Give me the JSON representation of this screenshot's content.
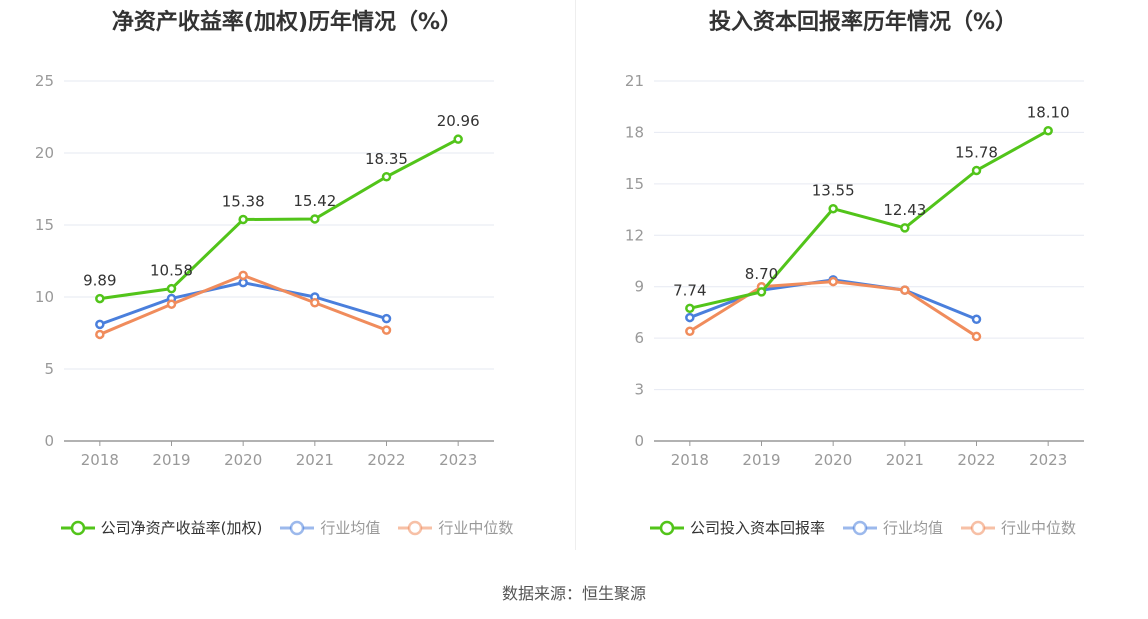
{
  "footer": {
    "source": "数据来源：恒生聚源"
  },
  "chart_data": [
    {
      "type": "line",
      "title": "净资产收益率(加权)历年情况（%）",
      "categories": [
        "2018",
        "2019",
        "2020",
        "2021",
        "2022",
        "2023"
      ],
      "ylim": [
        0,
        25
      ],
      "yticks": [
        0,
        5,
        10,
        15,
        20,
        25
      ],
      "grid": true,
      "legend_position": "bottom",
      "series": [
        {
          "name": "公司净资产收益率(加权)",
          "color": "#52c41a",
          "values": [
            9.89,
            10.58,
            15.38,
            15.42,
            18.35,
            20.96
          ],
          "labels": [
            "9.89",
            "10.58",
            "15.38",
            "15.42",
            "18.35",
            "20.96"
          ]
        },
        {
          "name": "行业均值",
          "color": "#4a7fdc",
          "values": [
            8.1,
            9.9,
            11.0,
            10.0,
            8.5,
            null
          ]
        },
        {
          "name": "行业中位数",
          "color": "#f08c5c",
          "values": [
            7.4,
            9.5,
            11.5,
            9.6,
            7.7,
            null
          ]
        }
      ]
    },
    {
      "type": "line",
      "title": "投入资本回报率历年情况（%）",
      "categories": [
        "2018",
        "2019",
        "2020",
        "2021",
        "2022",
        "2023"
      ],
      "ylim": [
        0,
        21
      ],
      "yticks": [
        0,
        3,
        6,
        9,
        12,
        15,
        18,
        21
      ],
      "grid": true,
      "legend_position": "bottom",
      "series": [
        {
          "name": "公司投入资本回报率",
          "color": "#52c41a",
          "values": [
            7.74,
            8.7,
            13.55,
            12.43,
            15.78,
            18.1
          ],
          "labels": [
            "7.74",
            "8.70",
            "13.55",
            "12.43",
            "15.78",
            "18.10"
          ]
        },
        {
          "name": "行业均值",
          "color": "#4a7fdc",
          "values": [
            7.2,
            8.8,
            9.4,
            8.8,
            7.1,
            null
          ]
        },
        {
          "name": "行业中位数",
          "color": "#f08c5c",
          "values": [
            6.4,
            9.0,
            9.3,
            8.8,
            6.1,
            null
          ]
        }
      ]
    }
  ]
}
